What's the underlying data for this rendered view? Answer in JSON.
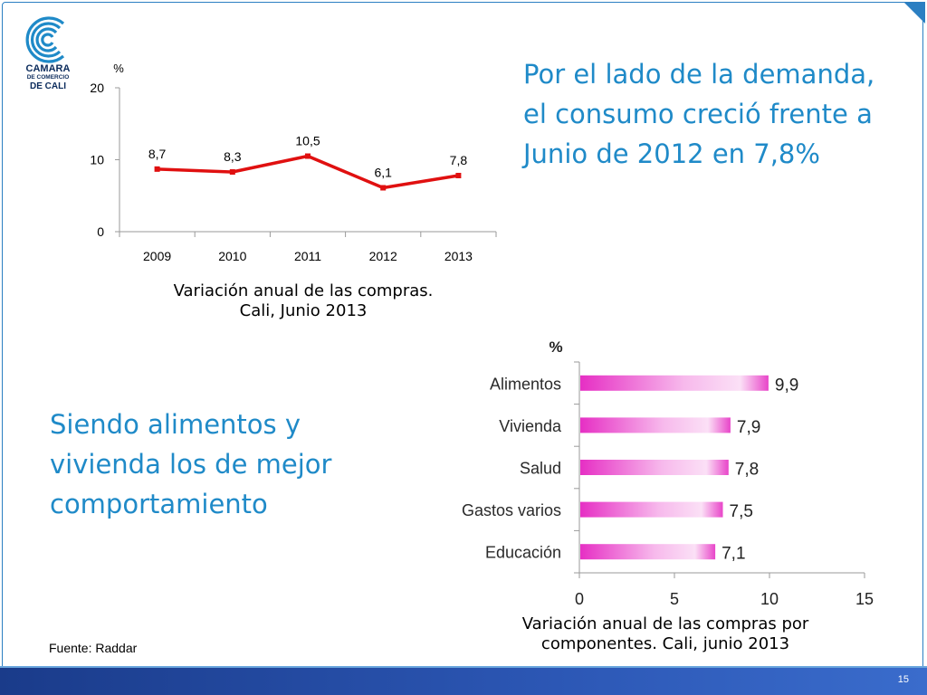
{
  "logo": {
    "line1": "CAMARA",
    "line2": "DE COMERCIO",
    "line3": "DE CALI"
  },
  "heading_top": "Por el lado de la demanda, el consumo creció frente a Junio de 2012 en 7,8%",
  "heading_left": "Siendo alimentos y vivienda los de mejor comportamiento",
  "source": "Fuente:  Raddar",
  "page_number": "15",
  "colors": {
    "accent": "#1f8ac8",
    "line": "#e01010",
    "bar": "#e845c9",
    "footer": "#1a3b8a"
  },
  "chart_data": [
    {
      "type": "line",
      "caption_line1": "Variación anual de las compras.",
      "caption_line2": "Cali, Junio 2013",
      "ylabel": "%",
      "ylim": [
        0,
        20
      ],
      "yticks": [
        "0",
        "10",
        "20"
      ],
      "categories": [
        "2009",
        "2010",
        "2011",
        "2012",
        "2013"
      ],
      "values": [
        8.7,
        8.3,
        10.5,
        6.1,
        7.8
      ],
      "labels": [
        "8,7",
        "8,3",
        "10,5",
        "6,1",
        "7,8"
      ],
      "grid": false
    },
    {
      "type": "bar",
      "orientation": "horizontal",
      "caption_line1": "Variación anual de las compras por",
      "caption_line2": "componentes. Cali, junio 2013",
      "ylabel": "%",
      "xlim": [
        0,
        15
      ],
      "xticks": [
        "0",
        "5",
        "10",
        "15"
      ],
      "categories": [
        "Alimentos",
        "Vivienda",
        "Salud",
        "Gastos varios",
        "Educación"
      ],
      "values": [
        9.9,
        7.9,
        7.8,
        7.5,
        7.1
      ],
      "labels": [
        "9,9",
        "7,9",
        "7,8",
        "7,5",
        "7,1"
      ],
      "grid": false
    }
  ]
}
